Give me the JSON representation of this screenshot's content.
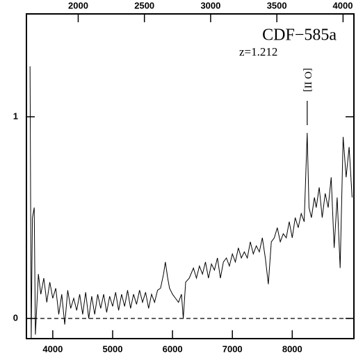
{
  "chart_data": {
    "type": "line",
    "annotations": {
      "object": "CDF−585a",
      "redshift": "z=1.212",
      "line_label": "[O II]"
    },
    "line_label_x": 8250,
    "xlim": [
      3560,
      9030
    ],
    "xticks": [
      4000,
      5000,
      6000,
      7000,
      8000
    ],
    "x2lim": [
      1609,
      4082
    ],
    "x2ticks": [
      2000,
      2500,
      3000,
      3500,
      4000
    ],
    "ylim": [
      -0.1,
      1.51
    ],
    "yticks": [
      0,
      1
    ],
    "hline": 0,
    "series": [
      {
        "color": "#000000",
        "x": [
          3620,
          3640,
          3660,
          3690,
          3710,
          3760,
          3800,
          3850,
          3900,
          3950,
          4000,
          4050,
          4100,
          4150,
          4200,
          4250,
          4300,
          4350,
          4400,
          4450,
          4500,
          4550,
          4600,
          4650,
          4700,
          4750,
          4800,
          4850,
          4900,
          4950,
          5000,
          5050,
          5100,
          5150,
          5200,
          5250,
          5300,
          5350,
          5400,
          5450,
          5500,
          5550,
          5600,
          5650,
          5700,
          5750,
          5800,
          5850,
          5880,
          5920,
          5950,
          6000,
          6050,
          6100,
          6150,
          6180,
          6220,
          6280,
          6350,
          6400,
          6450,
          6500,
          6550,
          6600,
          6650,
          6700,
          6750,
          6800,
          6850,
          6900,
          6950,
          7000,
          7050,
          7100,
          7150,
          7200,
          7250,
          7300,
          7350,
          7400,
          7450,
          7500,
          7550,
          7600,
          7650,
          7700,
          7750,
          7800,
          7850,
          7900,
          7950,
          8000,
          8050,
          8100,
          8150,
          8200,
          8250,
          8280,
          8320,
          8370,
          8400,
          8450,
          8500,
          8550,
          8600,
          8650,
          8700,
          8750,
          8800,
          8850,
          8900,
          8950,
          9000
        ],
        "values": [
          1.25,
          -0.1,
          0.5,
          0.55,
          -0.08,
          0.22,
          0.12,
          0.2,
          0.08,
          0.18,
          0.1,
          0.15,
          0.02,
          0.12,
          -0.03,
          0.14,
          0.05,
          0.1,
          0.04,
          0.12,
          0.02,
          0.13,
          0.0,
          0.11,
          0.02,
          0.12,
          0.05,
          0.12,
          0.03,
          0.11,
          0.06,
          0.13,
          0.04,
          0.12,
          0.06,
          0.14,
          0.05,
          0.12,
          0.07,
          0.14,
          0.08,
          0.13,
          0.05,
          0.12,
          0.08,
          0.14,
          0.15,
          0.22,
          0.28,
          0.2,
          0.15,
          0.12,
          0.1,
          0.08,
          0.12,
          0.0,
          0.18,
          0.2,
          0.25,
          0.2,
          0.26,
          0.22,
          0.28,
          0.2,
          0.27,
          0.24,
          0.3,
          0.2,
          0.28,
          0.3,
          0.26,
          0.32,
          0.28,
          0.35,
          0.3,
          0.33,
          0.3,
          0.38,
          0.32,
          0.36,
          0.33,
          0.4,
          0.3,
          0.17,
          0.38,
          0.4,
          0.45,
          0.38,
          0.42,
          0.4,
          0.48,
          0.4,
          0.5,
          0.45,
          0.52,
          0.48,
          0.92,
          0.55,
          0.5,
          0.6,
          0.55,
          0.65,
          0.5,
          0.62,
          0.55,
          0.7,
          0.35,
          0.6,
          0.25,
          0.9,
          0.7,
          0.85,
          0.6
        ]
      }
    ]
  }
}
